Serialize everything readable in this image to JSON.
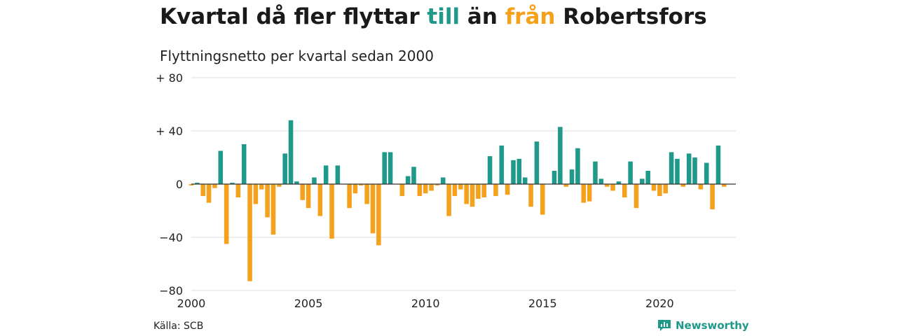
{
  "title": {
    "part1": "Kvartal då fler flyttar ",
    "pos_word": "till",
    "part2": " än ",
    "neg_word": "från",
    "part3": " Robertsfors"
  },
  "subtitle": "Flyttningsnetto per kvartal sedan 2000",
  "source": "Källa: SCB",
  "brand": {
    "name": "Newsworthy",
    "icon": "newsworthy-logo-icon"
  },
  "colors": {
    "positive": "#1f998a",
    "negative": "#f5a11c",
    "grid": "#dddddd",
    "axis": "#333333"
  },
  "chart_data": {
    "type": "bar",
    "x_tick_labels": [
      "2000",
      "2005",
      "2010",
      "2015",
      "2020"
    ],
    "y_tick_labels": [
      "+ 80",
      "+ 40",
      "0",
      "−40",
      "−80"
    ],
    "y_ticks": [
      80,
      40,
      0,
      -40,
      -80
    ],
    "ylim": [
      -80,
      80
    ],
    "xlim": [
      2000,
      2023.25
    ],
    "grid": true,
    "series": [
      {
        "x": [
          2000.0,
          2000.25,
          2000.5,
          2000.75,
          2001.0,
          2001.25,
          2001.5,
          2001.75,
          2002.0,
          2002.25,
          2002.5,
          2002.75,
          2003.0,
          2003.25,
          2003.5,
          2003.75,
          2004.0,
          2004.25,
          2004.5,
          2004.75,
          2005.0,
          2005.25,
          2005.5,
          2005.75,
          2006.0,
          2006.25,
          2006.5,
          2006.75,
          2007.0,
          2007.25,
          2007.5,
          2007.75,
          2008.0,
          2008.25,
          2008.5,
          2008.75,
          2009.0,
          2009.25,
          2009.5,
          2009.75,
          2010.0,
          2010.25,
          2010.5,
          2010.75,
          2011.0,
          2011.25,
          2011.5,
          2011.75,
          2012.0,
          2012.25,
          2012.5,
          2012.75,
          2013.0,
          2013.25,
          2013.5,
          2013.75,
          2014.0,
          2014.25,
          2014.5,
          2014.75,
          2015.0,
          2015.25,
          2015.5,
          2015.75,
          2016.0,
          2016.25,
          2016.5,
          2016.75,
          2017.0,
          2017.25,
          2017.5,
          2017.75,
          2018.0,
          2018.25,
          2018.5,
          2018.75,
          2019.0,
          2019.25,
          2019.5,
          2019.75,
          2020.0,
          2020.25,
          2020.5,
          2020.75,
          2021.0,
          2021.25,
          2021.5,
          2021.75,
          2022.0,
          2022.25,
          2022.5,
          2022.75
        ],
        "values": [
          -1,
          1,
          -9,
          -14,
          -3,
          25,
          -45,
          1,
          -10,
          30,
          -73,
          -15,
          -4,
          -25,
          -38,
          -2,
          23,
          48,
          2,
          -12,
          -18,
          5,
          -24,
          14,
          -41,
          14,
          0,
          -18,
          -7,
          -1,
          -15,
          -37,
          -46,
          24,
          24,
          0,
          -9,
          6,
          13,
          -9,
          -7,
          -5,
          -1,
          5,
          -24,
          -9,
          -4,
          -15,
          -17,
          -11,
          -10,
          21,
          -9,
          29,
          -8,
          18,
          19,
          5,
          -17,
          32,
          -23,
          0,
          10,
          43,
          -2,
          11,
          27,
          -14,
          -13,
          17,
          4,
          -2,
          -5,
          2,
          -10,
          17,
          -18,
          4,
          10,
          -5,
          -9,
          -7,
          24,
          19,
          -2,
          23,
          20,
          -4,
          16,
          -19,
          29,
          -2
        ]
      }
    ]
  }
}
